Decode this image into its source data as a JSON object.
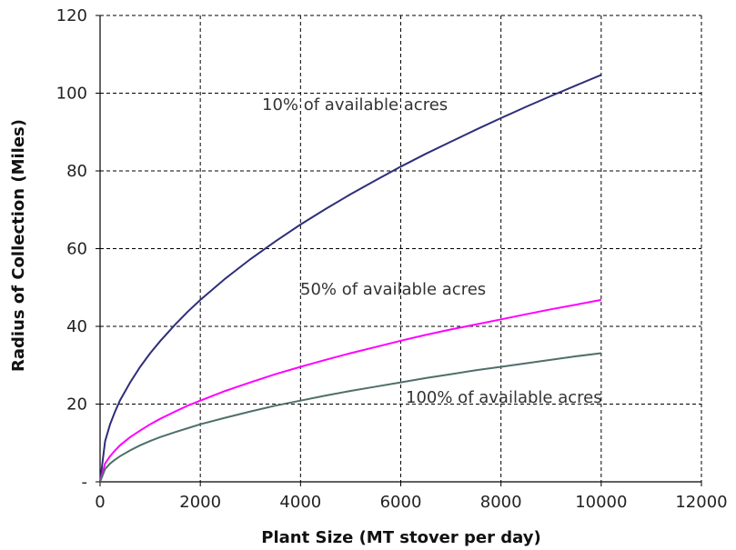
{
  "chart_data": {
    "type": "line",
    "title": "",
    "xlabel": "Plant Size (MT stover per day)",
    "ylabel": "Radius of Collection (Miles)",
    "xlim": [
      0,
      12000
    ],
    "ylim": [
      0,
      120
    ],
    "x_ticks": [
      "0",
      "2000",
      "4000",
      "6000",
      "8000",
      "10000",
      "12000"
    ],
    "y_ticks": [
      "-",
      "20",
      "40",
      "60",
      "80",
      "100",
      "120"
    ],
    "grid": true,
    "annotations": [
      {
        "text": "10% of available acres"
      },
      {
        "text": "50% of available acres"
      },
      {
        "text": "100% of available acres"
      }
    ],
    "series": [
      {
        "color": "#2E2E7A",
        "x": [
          0,
          100,
          200,
          300,
          400,
          600,
          800,
          1000,
          1200,
          1500,
          1750,
          2000,
          2500,
          3000,
          3500,
          4000,
          4500,
          5000,
          5500,
          6000,
          6500,
          7000,
          7500,
          8000,
          8500,
          9000,
          9500,
          10000
        ],
        "y": [
          0,
          10.4,
          14.8,
          18.1,
          21.0,
          25.6,
          29.6,
          33.1,
          36.2,
          40.5,
          43.8,
          46.8,
          52.3,
          57.3,
          61.9,
          66.2,
          70.2,
          74.0,
          77.6,
          81.1,
          84.4,
          87.5,
          90.6,
          93.6,
          96.5,
          99.3,
          102.0,
          104.7
        ]
      },
      {
        "color": "#FF00FF",
        "x": [
          0,
          100,
          200,
          300,
          400,
          600,
          800,
          1000,
          1200,
          1500,
          1750,
          2000,
          2500,
          3000,
          3500,
          4000,
          4500,
          5000,
          5500,
          6000,
          6500,
          7000,
          7500,
          8000,
          8500,
          9000,
          9500,
          10000
        ],
        "y": [
          0,
          4.7,
          6.6,
          8.1,
          9.4,
          11.5,
          13.2,
          14.8,
          16.2,
          18.1,
          19.6,
          20.9,
          23.4,
          25.6,
          27.7,
          29.6,
          31.4,
          33.1,
          34.7,
          36.3,
          37.8,
          39.2,
          40.5,
          41.8,
          43.1,
          44.4,
          45.6,
          46.8
        ]
      },
      {
        "color": "#4F6F6A",
        "x": [
          0,
          100,
          200,
          300,
          400,
          600,
          800,
          1000,
          1200,
          1500,
          1750,
          2000,
          2500,
          3000,
          3500,
          4000,
          4500,
          5000,
          5500,
          6000,
          6500,
          7000,
          7500,
          8000,
          8500,
          9000,
          9500,
          10000
        ],
        "y": [
          0,
          3.3,
          4.7,
          5.7,
          6.6,
          8.1,
          9.4,
          10.5,
          11.5,
          12.8,
          13.8,
          14.8,
          16.5,
          18.1,
          19.6,
          20.9,
          22.2,
          23.4,
          24.5,
          25.6,
          26.7,
          27.7,
          28.7,
          29.6,
          30.5,
          31.4,
          32.3,
          33.1
        ]
      }
    ]
  }
}
